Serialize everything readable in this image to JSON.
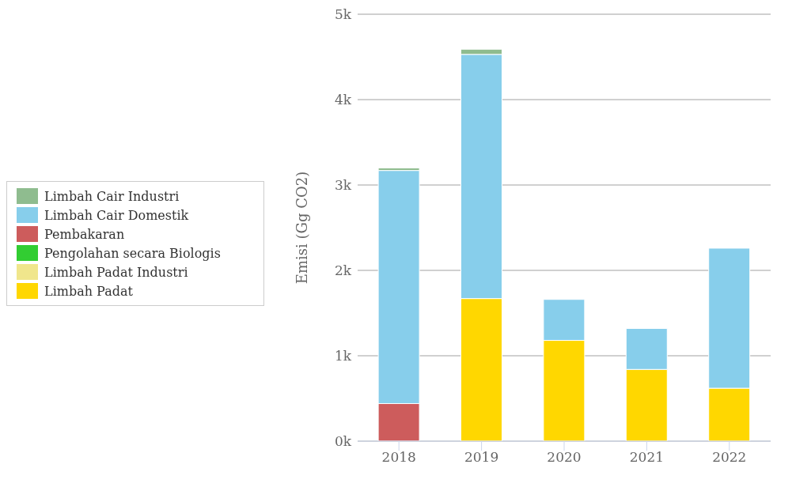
{
  "chart_data": {
    "type": "bar",
    "stacked": true,
    "ylabel": "Emisi (Gg CO2)",
    "categories": [
      "2018",
      "2019",
      "2020",
      "2021",
      "2022"
    ],
    "series": [
      {
        "name": "Limbah Padat",
        "color": "#ffd700",
        "values": [
          null,
          1670,
          1180,
          840,
          620
        ]
      },
      {
        "name": "Limbah Padat Industri",
        "color": "#f0e68c",
        "values": [
          null,
          null,
          null,
          null,
          null
        ]
      },
      {
        "name": "Pengolahan secara Biologis",
        "color": "#32cd32",
        "values": [
          null,
          null,
          null,
          null,
          null
        ]
      },
      {
        "name": "Pembakaran",
        "color": "#cd5c5c",
        "values": [
          440,
          null,
          null,
          null,
          null
        ]
      },
      {
        "name": "Limbah Cair Domestik",
        "color": "#87ceeb",
        "values": [
          2730,
          2860,
          480,
          480,
          1640
        ]
      },
      {
        "name": "Limbah Cair Industri",
        "color": "#8fbc8f",
        "values": [
          30,
          60,
          null,
          null,
          null
        ]
      }
    ],
    "ylim": [
      0,
      5000
    ],
    "yticks": [
      {
        "value": 0,
        "label": "0k"
      },
      {
        "value": 1000,
        "label": "1k"
      },
      {
        "value": 2000,
        "label": "2k"
      },
      {
        "value": 3000,
        "label": "3k"
      },
      {
        "value": 4000,
        "label": "4k"
      },
      {
        "value": 5000,
        "label": "5k"
      }
    ],
    "grid": "y",
    "legend": "left"
  }
}
